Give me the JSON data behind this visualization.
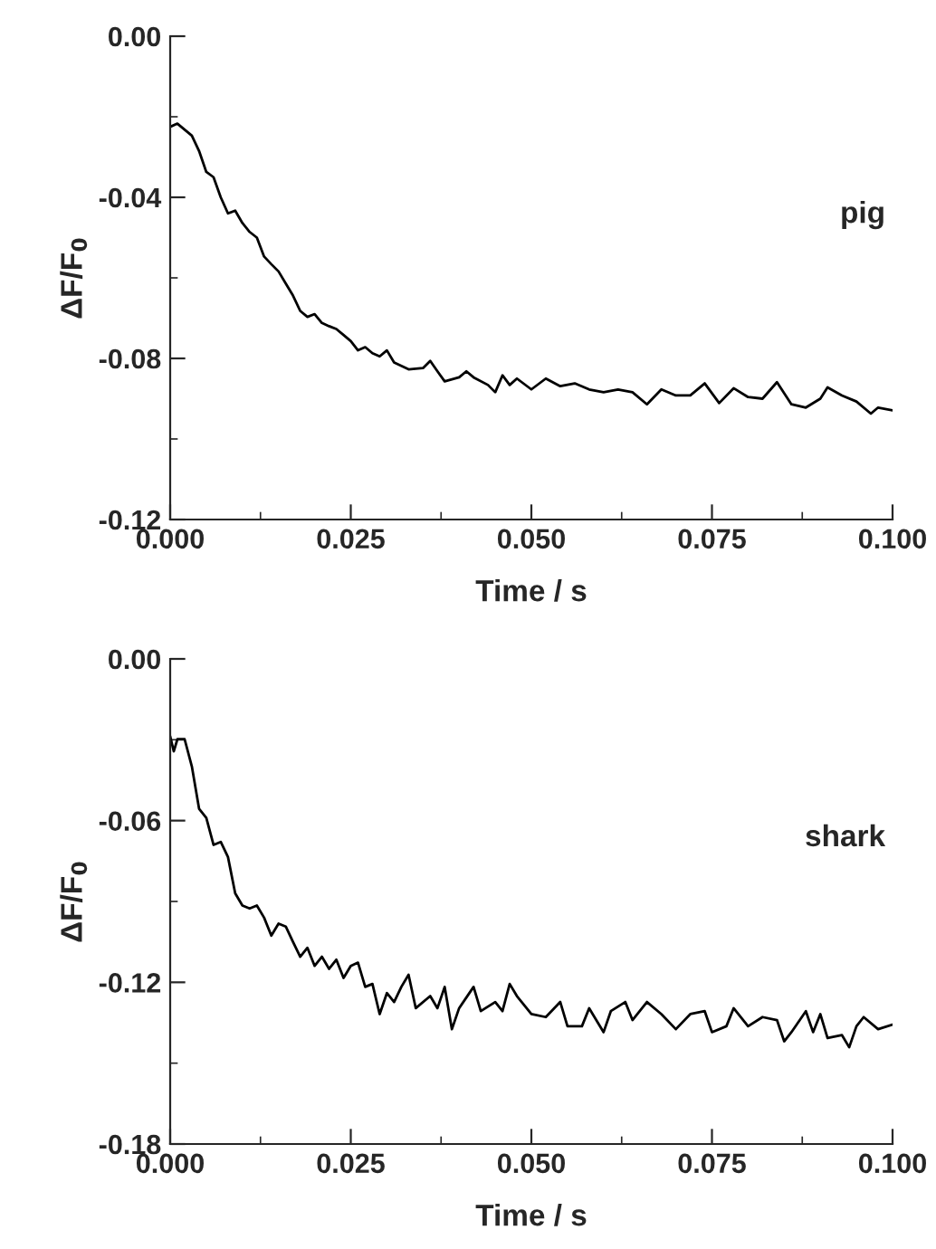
{
  "chart_data": [
    {
      "type": "line",
      "xlabel": "Time / s",
      "ylabel": "ΔF/F$_{0}$",
      "grid": false,
      "legend": false,
      "marker": "none",
      "line_style": "solid",
      "xlim": [
        0.0,
        0.1
      ],
      "ylim": [
        -0.12,
        0.0
      ],
      "xticks": [
        {
          "value": 0.0,
          "label": "0.000"
        },
        {
          "value": 0.0125,
          "label": null
        },
        {
          "value": 0.025,
          "label": "0.025"
        },
        {
          "value": 0.0375,
          "label": null
        },
        {
          "value": 0.05,
          "label": "0.050"
        },
        {
          "value": 0.0625,
          "label": null
        },
        {
          "value": 0.075,
          "label": "0.075"
        },
        {
          "value": 0.0875,
          "label": null
        },
        {
          "value": 0.1,
          "label": "0.100"
        }
      ],
      "yticks": [
        {
          "value": -0.12,
          "label": "-0.12"
        },
        {
          "value": -0.1,
          "label": null
        },
        {
          "value": -0.08,
          "label": "-0.08"
        },
        {
          "value": -0.06,
          "label": null
        },
        {
          "value": -0.04,
          "label": "-0.04"
        },
        {
          "value": -0.02,
          "label": null
        },
        {
          "value": 0.0,
          "label": "0.00"
        }
      ],
      "series": [
        {
          "name": "pig",
          "color": "#000000",
          "x": [
            0.0,
            0.001,
            0.003,
            0.004,
            0.005,
            0.006,
            0.007,
            0.008,
            0.009,
            0.01,
            0.011,
            0.012,
            0.013,
            0.014,
            0.015,
            0.016,
            0.017,
            0.018,
            0.019,
            0.02,
            0.021,
            0.022,
            0.023,
            0.024,
            0.025,
            0.026,
            0.027,
            0.028,
            0.029,
            0.03,
            0.031,
            0.033,
            0.035,
            0.036,
            0.037,
            0.038,
            0.04,
            0.041,
            0.042,
            0.044,
            0.045,
            0.046,
            0.047,
            0.048,
            0.05,
            0.052,
            0.054,
            0.056,
            0.058,
            0.06,
            0.062,
            0.064,
            0.066,
            0.068,
            0.07,
            0.072,
            0.074,
            0.076,
            0.078,
            0.08,
            0.082,
            0.084,
            0.086,
            0.088,
            0.09,
            0.091,
            0.093,
            0.095,
            0.097,
            0.098,
            0.1
          ],
          "values": [
            -0.0225,
            -0.0217,
            -0.0247,
            -0.0285,
            -0.0337,
            -0.035,
            -0.04,
            -0.044,
            -0.0433,
            -0.0464,
            -0.0486,
            -0.05,
            -0.0547,
            -0.0566,
            -0.0584,
            -0.0614,
            -0.0644,
            -0.0682,
            -0.0697,
            -0.069,
            -0.0712,
            -0.072,
            -0.0727,
            -0.0742,
            -0.0757,
            -0.078,
            -0.0772,
            -0.0787,
            -0.0795,
            -0.078,
            -0.081,
            -0.0827,
            -0.0824,
            -0.0806,
            -0.0832,
            -0.0857,
            -0.0847,
            -0.0832,
            -0.0847,
            -0.0866,
            -0.0884,
            -0.0842,
            -0.0866,
            -0.085,
            -0.0877,
            -0.085,
            -0.0869,
            -0.0862,
            -0.0877,
            -0.0884,
            -0.0877,
            -0.0884,
            -0.0914,
            -0.0877,
            -0.0892,
            -0.0892,
            -0.0862,
            -0.0911,
            -0.0874,
            -0.0896,
            -0.09,
            -0.0859,
            -0.0914,
            -0.0922,
            -0.09,
            -0.0872,
            -0.0892,
            -0.0907,
            -0.0937,
            -0.0922,
            -0.0929
          ]
        }
      ]
    },
    {
      "type": "line",
      "xlabel": "Time / s",
      "ylabel": "ΔF/F$_{0}$",
      "grid": false,
      "legend": false,
      "marker": "none",
      "line_style": "solid",
      "xlim": [
        0.0,
        0.1
      ],
      "ylim": [
        -0.18,
        0.0
      ],
      "xticks": [
        {
          "value": 0.0,
          "label": "0.000"
        },
        {
          "value": 0.0125,
          "label": null
        },
        {
          "value": 0.025,
          "label": "0.025"
        },
        {
          "value": 0.0375,
          "label": null
        },
        {
          "value": 0.05,
          "label": "0.050"
        },
        {
          "value": 0.0625,
          "label": null
        },
        {
          "value": 0.075,
          "label": "0.075"
        },
        {
          "value": 0.0875,
          "label": null
        },
        {
          "value": 0.1,
          "label": "0.100"
        }
      ],
      "yticks": [
        {
          "value": -0.18,
          "label": "-0.18"
        },
        {
          "value": -0.15,
          "label": null
        },
        {
          "value": -0.12,
          "label": "-0.12"
        },
        {
          "value": -0.09,
          "label": null
        },
        {
          "value": -0.06,
          "label": "-0.06"
        },
        {
          "value": -0.03,
          "label": null
        },
        {
          "value": 0.0,
          "label": "0.00"
        }
      ],
      "series": [
        {
          "name": "shark",
          "color": "#000000",
          "x": [
            0.0,
            0.0005,
            0.001,
            0.002,
            0.003,
            0.004,
            0.005,
            0.006,
            0.007,
            0.008,
            0.009,
            0.01,
            0.011,
            0.012,
            0.013,
            0.014,
            0.015,
            0.016,
            0.017,
            0.018,
            0.019,
            0.02,
            0.021,
            0.022,
            0.023,
            0.024,
            0.025,
            0.026,
            0.027,
            0.028,
            0.029,
            0.03,
            0.031,
            0.032,
            0.033,
            0.034,
            0.036,
            0.037,
            0.038,
            0.039,
            0.04,
            0.042,
            0.043,
            0.045,
            0.046,
            0.047,
            0.048,
            0.05,
            0.052,
            0.054,
            0.055,
            0.057,
            0.058,
            0.06,
            0.061,
            0.063,
            0.064,
            0.066,
            0.068,
            0.07,
            0.072,
            0.074,
            0.075,
            0.077,
            0.078,
            0.08,
            0.082,
            0.084,
            0.085,
            0.086,
            0.088,
            0.089,
            0.09,
            0.091,
            0.093,
            0.094,
            0.095,
            0.096,
            0.098,
            0.1
          ],
          "values": [
            -0.0287,
            -0.0343,
            -0.0298,
            -0.0298,
            -0.0399,
            -0.0556,
            -0.059,
            -0.069,
            -0.0679,
            -0.0735,
            -0.087,
            -0.0915,
            -0.0926,
            -0.0915,
            -0.096,
            -0.1027,
            -0.0982,
            -0.0993,
            -0.105,
            -0.1105,
            -0.1072,
            -0.1139,
            -0.1105,
            -0.115,
            -0.1116,
            -0.1184,
            -0.1139,
            -0.1127,
            -0.1217,
            -0.1206,
            -0.1318,
            -0.124,
            -0.1273,
            -0.1217,
            -0.1172,
            -0.1296,
            -0.1251,
            -0.1296,
            -0.1217,
            -0.1374,
            -0.1296,
            -0.1217,
            -0.1307,
            -0.1273,
            -0.1307,
            -0.1206,
            -0.1251,
            -0.1318,
            -0.1329,
            -0.1273,
            -0.1363,
            -0.1363,
            -0.1296,
            -0.1385,
            -0.1307,
            -0.1273,
            -0.134,
            -0.1273,
            -0.1318,
            -0.1374,
            -0.1318,
            -0.1307,
            -0.1385,
            -0.1363,
            -0.1296,
            -0.1363,
            -0.1329,
            -0.134,
            -0.1419,
            -0.1385,
            -0.1307,
            -0.1385,
            -0.1318,
            -0.1407,
            -0.1396,
            -0.1441,
            -0.1363,
            -0.1329,
            -0.1374,
            -0.1357
          ]
        }
      ]
    }
  ]
}
